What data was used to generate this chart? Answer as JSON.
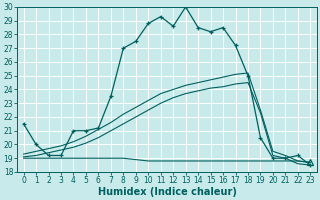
{
  "xlabel": "Humidex (Indice chaleur)",
  "bg_color": "#c8eaea",
  "grid_color": "#ffffff",
  "line_color": "#005f5f",
  "ylim": [
    18,
    30
  ],
  "xlim": [
    -0.5,
    23.5
  ],
  "yticks": [
    18,
    19,
    20,
    21,
    22,
    23,
    24,
    25,
    26,
    27,
    28,
    29,
    30
  ],
  "xticks": [
    0,
    1,
    2,
    3,
    4,
    5,
    6,
    7,
    8,
    9,
    10,
    11,
    12,
    13,
    14,
    15,
    16,
    17,
    18,
    19,
    20,
    21,
    22,
    23
  ],
  "curve1_x": [
    0,
    1,
    2,
    3,
    4,
    5,
    6,
    7,
    8,
    9,
    10,
    11,
    12,
    13,
    14,
    15,
    16,
    17,
    18,
    19,
    20,
    21,
    22,
    23
  ],
  "curve1_y": [
    21.5,
    20.0,
    19.2,
    19.2,
    21.0,
    21.0,
    21.2,
    23.5,
    27.0,
    27.5,
    28.8,
    29.3,
    28.6,
    30.0,
    28.5,
    28.2,
    28.5,
    27.2,
    25.0,
    20.5,
    19.0,
    19.0,
    19.2,
    18.5
  ],
  "curve2_x": [
    0,
    1,
    2,
    3,
    4,
    5,
    6,
    7,
    8,
    9,
    10,
    11,
    12,
    13,
    14,
    15,
    16,
    17,
    18,
    19,
    20,
    21,
    22,
    23
  ],
  "curve2_y": [
    19.0,
    19.0,
    19.0,
    19.0,
    19.0,
    19.0,
    19.0,
    19.0,
    19.0,
    18.9,
    18.8,
    18.8,
    18.8,
    18.8,
    18.8,
    18.8,
    18.8,
    18.8,
    18.8,
    18.8,
    18.8,
    18.8,
    18.8,
    18.7
  ],
  "curve3_x": [
    0,
    1,
    2,
    3,
    4,
    5,
    6,
    7,
    8,
    9,
    10,
    11,
    12,
    13,
    14,
    15,
    16,
    17,
    18,
    19,
    20,
    21,
    22,
    23
  ],
  "curve3_y": [
    19.1,
    19.2,
    19.4,
    19.6,
    19.8,
    20.1,
    20.5,
    21.0,
    21.5,
    22.0,
    22.5,
    23.0,
    23.4,
    23.7,
    23.9,
    24.1,
    24.2,
    24.4,
    24.5,
    22.3,
    19.2,
    19.0,
    18.6,
    18.5
  ],
  "curve4_x": [
    0,
    1,
    2,
    3,
    4,
    5,
    6,
    7,
    8,
    9,
    10,
    11,
    12,
    13,
    14,
    15,
    16,
    17,
    18,
    19,
    20,
    21,
    22,
    23
  ],
  "curve4_y": [
    19.3,
    19.5,
    19.7,
    19.9,
    20.2,
    20.6,
    21.1,
    21.6,
    22.2,
    22.7,
    23.2,
    23.7,
    24.0,
    24.3,
    24.5,
    24.7,
    24.9,
    25.1,
    25.2,
    22.5,
    19.5,
    19.2,
    18.8,
    18.7
  ],
  "triangle_x": 23,
  "triangle_y": 18.7,
  "xlabel_fontsize": 7,
  "tick_fontsize": 5.5
}
